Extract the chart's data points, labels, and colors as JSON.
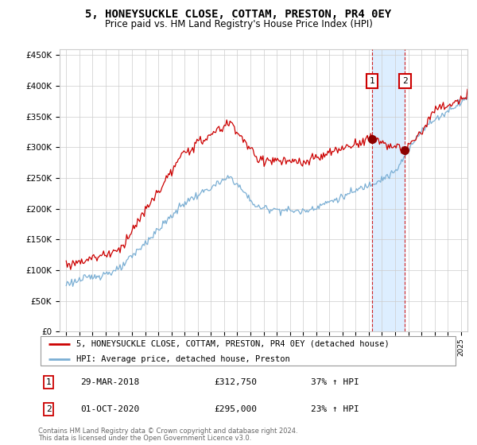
{
  "title": "5, HONEYSUCKLE CLOSE, COTTAM, PRESTON, PR4 0EY",
  "subtitle": "Price paid vs. HM Land Registry's House Price Index (HPI)",
  "legend_line1": "5, HONEYSUCKLE CLOSE, COTTAM, PRESTON, PR4 0EY (detached house)",
  "legend_line2": "HPI: Average price, detached house, Preston",
  "footnote1": "Contains HM Land Registry data © Crown copyright and database right 2024.",
  "footnote2": "This data is licensed under the Open Government Licence v3.0.",
  "sale1_date": "29-MAR-2018",
  "sale1_price": "£312,750",
  "sale1_hpi": "37% ↑ HPI",
  "sale2_date": "01-OCT-2020",
  "sale2_price": "£295,000",
  "sale2_hpi": "23% ↑ HPI",
  "red_color": "#cc0000",
  "blue_color": "#7bafd4",
  "sale1_year": 2018.25,
  "sale1_value": 312750,
  "sale2_year": 2020.75,
  "sale2_value": 295000,
  "ylim": [
    0,
    460000
  ],
  "xlim_start": 1994.5,
  "xlim_end": 2025.5,
  "grid_color": "#cccccc",
  "span_color": "#ddeeff"
}
